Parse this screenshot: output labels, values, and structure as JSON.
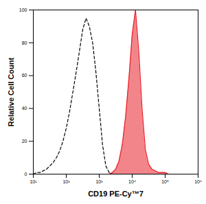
{
  "chart_data": {
    "type": "line",
    "x_label": "CD19 PE-Cy™7",
    "y_label": "Relative Cell Count",
    "log": "x",
    "grid": false,
    "xlim": [
      10,
      1000000
    ],
    "xticks": [
      {
        "value": 10,
        "label": "10¹"
      },
      {
        "value": 100,
        "label": "10²"
      },
      {
        "value": 1000,
        "label": "10³"
      },
      {
        "value": 10000,
        "label": "10⁴"
      },
      {
        "value": 100000,
        "label": "10⁵"
      },
      {
        "value": 1000000,
        "label": "10⁶"
      }
    ],
    "ylim": [
      0,
      100
    ],
    "yticks": [
      0,
      20,
      40,
      60,
      80,
      100
    ],
    "x": [
      10,
      12.59,
      15.85,
      19.95,
      25.12,
      31.62,
      39.81,
      50.12,
      63.1,
      79.43,
      100,
      125.9,
      158.5,
      199.5,
      251.2,
      316.2,
      398.1,
      501.2,
      631,
      794.3,
      1000,
      1259,
      1585,
      1995,
      2512,
      3162,
      3981,
      5012,
      6310,
      7943,
      10000,
      12590,
      15850,
      19950,
      25120,
      31620,
      39810,
      50120,
      63100,
      79430,
      100000,
      125900,
      158500,
      199500,
      251200,
      316200,
      398100,
      501200,
      631000,
      794300,
      1000000
    ],
    "series": [
      {
        "color": "#000000",
        "line_style": "dashed",
        "values": [
          0,
          1,
          1,
          2,
          3,
          5,
          7,
          10,
          14,
          20,
          28,
          38,
          50,
          62,
          75,
          88,
          95,
          90,
          80,
          62,
          40,
          18,
          5,
          1,
          0,
          null,
          null,
          null,
          null,
          null,
          null,
          null,
          null,
          null,
          null,
          null,
          null,
          null,
          null,
          null,
          null,
          null,
          null,
          null,
          null,
          null,
          null,
          null,
          null,
          null,
          null
        ]
      },
      {
        "color": "#e8202a",
        "type": "area",
        "values": [
          null,
          null,
          null,
          null,
          null,
          null,
          null,
          null,
          null,
          null,
          null,
          null,
          null,
          null,
          null,
          null,
          null,
          null,
          null,
          null,
          null,
          null,
          null,
          0,
          1,
          3,
          8,
          18,
          35,
          58,
          85,
          100,
          75,
          40,
          15,
          6,
          3,
          2,
          1,
          1,
          1,
          0,
          0,
          0,
          0,
          0,
          null,
          null,
          null,
          null,
          null
        ]
      }
    ]
  }
}
